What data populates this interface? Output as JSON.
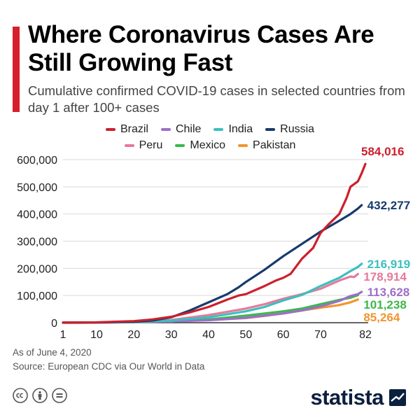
{
  "header": {
    "title": "Where Coronavirus Cases Are Still Growing Fast",
    "subtitle": "Cumulative confirmed COVID-19 cases in selected countries from day 1 after 100+ cases"
  },
  "legend": {
    "row1": [
      {
        "name": "Brazil",
        "color": "#cc1f2d"
      },
      {
        "name": "Chile",
        "color": "#9b6fc8"
      },
      {
        "name": "India",
        "color": "#3bbfc0"
      },
      {
        "name": "Russia",
        "color": "#173a6d"
      }
    ],
    "row2": [
      {
        "name": "Peru",
        "color": "#e67a9a"
      },
      {
        "name": "Mexico",
        "color": "#3cb84a"
      },
      {
        "name": "Pakistan",
        "color": "#f0962e"
      }
    ]
  },
  "chart_data": {
    "type": "line",
    "x_ticks": [
      1,
      10,
      20,
      30,
      40,
      50,
      60,
      70,
      82
    ],
    "y_ticks": [
      0,
      100000,
      200000,
      300000,
      400000,
      500000,
      600000
    ],
    "y_tick_labels": [
      "0",
      "100,000",
      "200,000",
      "300,000",
      "400,000",
      "500,000",
      "600,000"
    ],
    "xlim": [
      1,
      82
    ],
    "ylim": [
      0,
      600000
    ],
    "grid": true,
    "legend_position": "top",
    "series": [
      {
        "name": "Brazil",
        "color": "#cc1f2d",
        "end_label": "584,016",
        "points": [
          [
            1,
            200
          ],
          [
            10,
            1200
          ],
          [
            20,
            6000
          ],
          [
            25,
            12000
          ],
          [
            30,
            22000
          ],
          [
            35,
            38000
          ],
          [
            40,
            58000
          ],
          [
            45,
            85000
          ],
          [
            48,
            100000
          ],
          [
            50,
            105000
          ],
          [
            55,
            135000
          ],
          [
            58,
            155000
          ],
          [
            60,
            165000
          ],
          [
            62,
            180000
          ],
          [
            65,
            235000
          ],
          [
            68,
            275000
          ],
          [
            70,
            330000
          ],
          [
            72,
            360000
          ],
          [
            75,
            400000
          ],
          [
            77,
            460000
          ],
          [
            78,
            500000
          ],
          [
            80,
            520000
          ],
          [
            81,
            550000
          ],
          [
            82,
            584016
          ]
        ]
      },
      {
        "name": "Russia",
        "color": "#173a6d",
        "end_label": "432,277",
        "points": [
          [
            1,
            150
          ],
          [
            10,
            700
          ],
          [
            20,
            3500
          ],
          [
            25,
            8000
          ],
          [
            30,
            20000
          ],
          [
            35,
            45000
          ],
          [
            40,
            75000
          ],
          [
            45,
            105000
          ],
          [
            48,
            130000
          ],
          [
            50,
            150000
          ],
          [
            55,
            195000
          ],
          [
            60,
            245000
          ],
          [
            65,
            290000
          ],
          [
            70,
            335000
          ],
          [
            75,
            375000
          ],
          [
            78,
            400000
          ],
          [
            80,
            420000
          ],
          [
            81,
            432277
          ]
        ]
      },
      {
        "name": "India",
        "color": "#3bbfc0",
        "end_label": "216,919",
        "points": [
          [
            1,
            130
          ],
          [
            10,
            600
          ],
          [
            20,
            2000
          ],
          [
            30,
            8000
          ],
          [
            40,
            20000
          ],
          [
            50,
            42000
          ],
          [
            55,
            58000
          ],
          [
            60,
            82000
          ],
          [
            65,
            102000
          ],
          [
            70,
            135000
          ],
          [
            75,
            165000
          ],
          [
            78,
            190000
          ],
          [
            80,
            205000
          ],
          [
            81,
            216919
          ]
        ]
      },
      {
        "name": "Peru",
        "color": "#e67a9a",
        "end_label": "178,914",
        "points": [
          [
            1,
            120
          ],
          [
            10,
            500
          ],
          [
            20,
            2500
          ],
          [
            30,
            10000
          ],
          [
            40,
            28000
          ],
          [
            50,
            52000
          ],
          [
            55,
            68000
          ],
          [
            60,
            88000
          ],
          [
            65,
            105000
          ],
          [
            70,
            125000
          ],
          [
            75,
            155000
          ],
          [
            78,
            170000
          ],
          [
            79,
            168000
          ],
          [
            80,
            178914
          ]
        ]
      },
      {
        "name": "Chile",
        "color": "#9b6fc8",
        "end_label": "113,628",
        "points": [
          [
            1,
            150
          ],
          [
            10,
            800
          ],
          [
            20,
            2500
          ],
          [
            30,
            5000
          ],
          [
            40,
            9000
          ],
          [
            50,
            18000
          ],
          [
            55,
            26000
          ],
          [
            60,
            34000
          ],
          [
            65,
            45000
          ],
          [
            70,
            60000
          ],
          [
            75,
            80000
          ],
          [
            78,
            98000
          ],
          [
            80,
            105000
          ],
          [
            81,
            113628
          ]
        ]
      },
      {
        "name": "Mexico",
        "color": "#3cb84a",
        "end_label": "101,238",
        "points": [
          [
            1,
            120
          ],
          [
            10,
            500
          ],
          [
            20,
            2000
          ],
          [
            30,
            5000
          ],
          [
            40,
            12000
          ],
          [
            50,
            26000
          ],
          [
            55,
            34000
          ],
          [
            60,
            42000
          ],
          [
            65,
            52000
          ],
          [
            70,
            68000
          ],
          [
            75,
            84000
          ],
          [
            78,
            92000
          ],
          [
            80,
            101238
          ]
        ]
      },
      {
        "name": "Pakistan",
        "color": "#f0962e",
        "end_label": "85,264",
        "points": [
          [
            1,
            100
          ],
          [
            10,
            600
          ],
          [
            20,
            2000
          ],
          [
            30,
            5000
          ],
          [
            40,
            10000
          ],
          [
            50,
            17000
          ],
          [
            55,
            25000
          ],
          [
            60,
            34000
          ],
          [
            65,
            45000
          ],
          [
            70,
            55000
          ],
          [
            75,
            65000
          ],
          [
            78,
            75000
          ],
          [
            80,
            85264
          ]
        ]
      }
    ]
  },
  "footer": {
    "as_of": "As of June 4, 2020",
    "source": "Source: European CDC via Our World in Data",
    "brand": "statista",
    "license_icons": [
      "cc-icon",
      "by-icon",
      "equal-icon"
    ]
  }
}
